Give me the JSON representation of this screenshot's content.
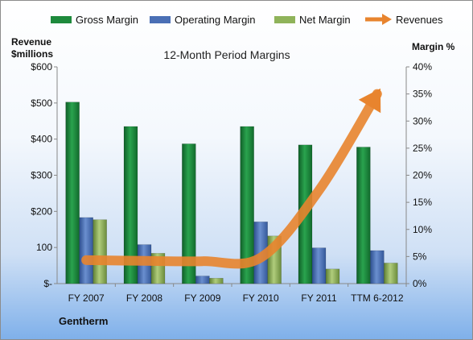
{
  "colors": {
    "gross": "#1e8a3c",
    "operating": "#4a6fb5",
    "net": "#8fb35a",
    "revenue": "#e8842e"
  },
  "chart_data": {
    "type": "bar",
    "title": "12-Month Period Margins",
    "company": "Gentherm",
    "left_axis_title": [
      "Revenue",
      "$millions"
    ],
    "right_axis_title": "Margin %",
    "categories": [
      "FY 2007",
      "FY 2008",
      "FY 2009",
      "FY 2010",
      "FY 2011",
      "TTM 6-2012"
    ],
    "left_ylim": [
      0,
      600
    ],
    "left_ticks": [
      0,
      100,
      200,
      300,
      400,
      500,
      600
    ],
    "left_tick_labels": [
      "$-",
      "100",
      "$200",
      "$300",
      "$400",
      "$500",
      "$600"
    ],
    "right_ylim": [
      0,
      40
    ],
    "right_ticks": [
      0,
      5,
      10,
      15,
      20,
      25,
      30,
      35,
      40
    ],
    "right_tick_labels": [
      "0%",
      "5%",
      "10%",
      "15%",
      "20%",
      "25%",
      "30%",
      "35%",
      "40%"
    ],
    "series": [
      {
        "name": "Gross Margin",
        "axis": "right",
        "values": [
          33.5,
          29,
          25.8,
          29,
          25.6,
          25.2
        ]
      },
      {
        "name": "Operating Margin",
        "axis": "right",
        "values": [
          12.2,
          7.2,
          1.4,
          11.4,
          6.6,
          6.1
        ]
      },
      {
        "name": "Net Margin",
        "axis": "right",
        "values": [
          11.8,
          5.6,
          1.0,
          8.8,
          2.7,
          3.8
        ]
      },
      {
        "name": "Revenues",
        "axis": "left",
        "type": "line",
        "values": [
          65,
          63,
          62,
          72,
          258,
          525
        ]
      }
    ],
    "legend_position": "top",
    "grid": false
  }
}
